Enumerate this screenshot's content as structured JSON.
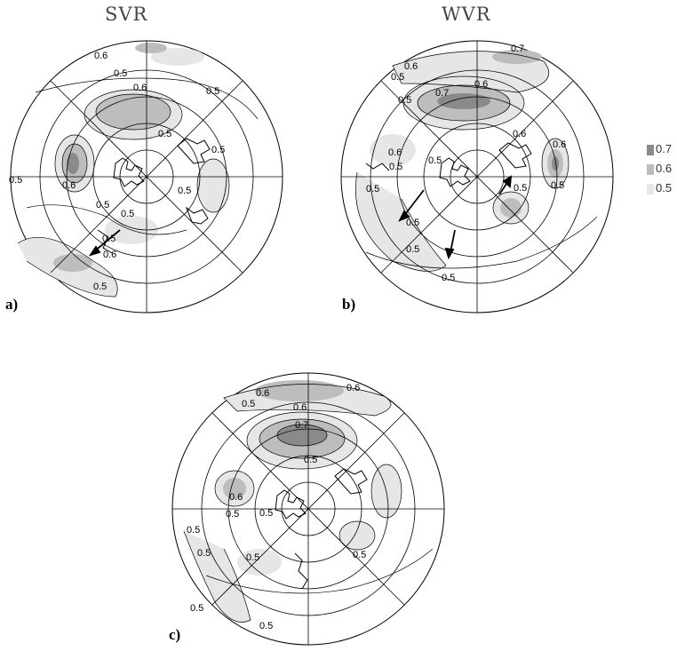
{
  "titles": {
    "svr": "SVR",
    "wvr": "WVR"
  },
  "panel_labels": {
    "a": "a)",
    "b": "b)",
    "c": "c)"
  },
  "legend": {
    "entries": [
      {
        "label": "0.7",
        "color": "#8a8a8a"
      },
      {
        "label": "0.6",
        "color": "#bdbdbd"
      },
      {
        "label": "0.5",
        "color": "#e6e6e6"
      }
    ]
  },
  "panels": [
    {
      "id": "a",
      "contour_labels": [
        "0.6",
        "0.5",
        "0.6",
        "0.5",
        "0.5",
        "0.5",
        "0.5",
        "0.6",
        "0.5",
        "0.5",
        "0.6",
        "0.5",
        "0.5",
        "0.5"
      ]
    },
    {
      "id": "b",
      "contour_labels": [
        "0.7",
        "0.6",
        "0.5",
        "0.5",
        "0.7",
        "0.6",
        "0.6",
        "0.6",
        "0.5",
        "0.5",
        "0.5",
        "0.5",
        "0.5",
        "0.5",
        "0.6",
        "0.5",
        "0.5"
      ]
    },
    {
      "id": "c",
      "contour_labels": [
        "0.6",
        "0.6",
        "0.5",
        "0.6",
        "0.7",
        "0.5",
        "0.6",
        "0.5",
        "0.5",
        "0.5",
        "0.5",
        "0.5",
        "0.5",
        "0.5",
        "0.5"
      ]
    }
  ]
}
